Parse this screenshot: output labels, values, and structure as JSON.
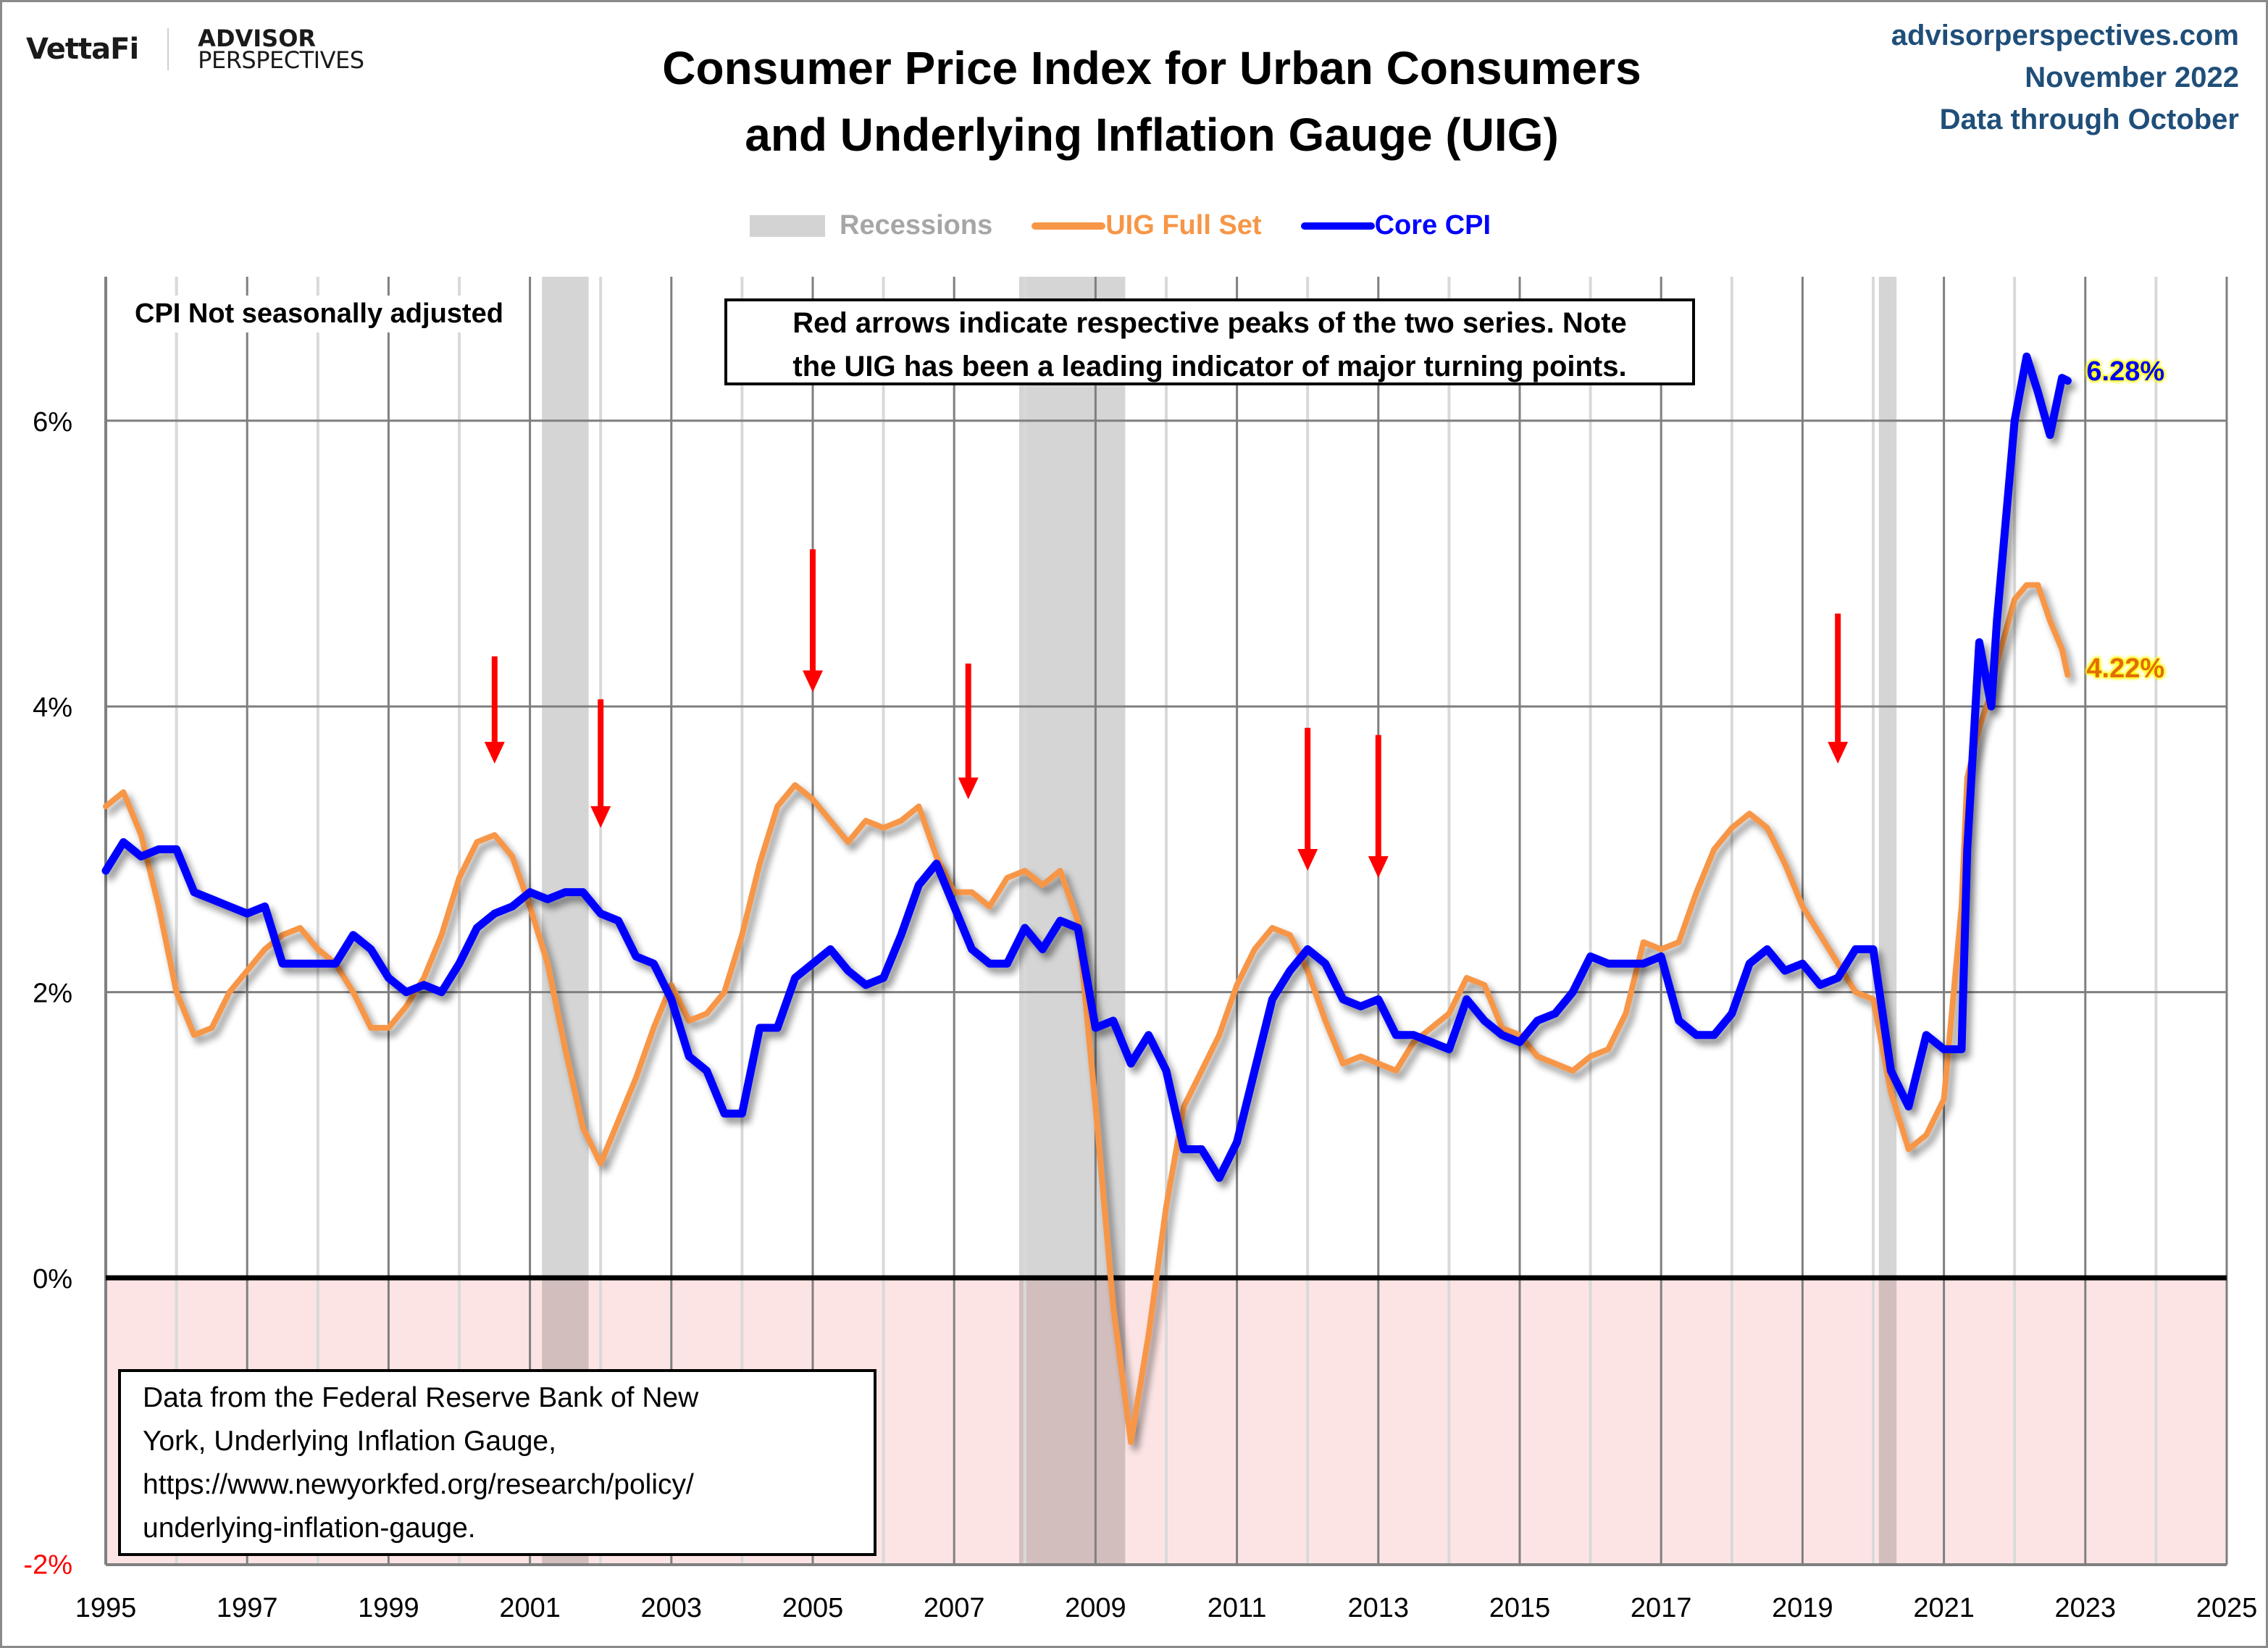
{
  "header": {
    "logo_primary": "VettaFi",
    "logo_secondary_line1": "ADVISOR",
    "logo_secondary_line2": "PERSPECTIVES",
    "title_line1": "Consumer Price Index for Urban Consumers",
    "title_line2": "and Underlying Inflation Gauge (UIG)",
    "site": "advisorperspectives.com",
    "date": "November 2022",
    "data_through": "Data through October"
  },
  "colors": {
    "uig": "#f79646",
    "core": "#0000ff",
    "recession": "#d3d3d3",
    "negative_zone": "#fde4e4",
    "arrow": "#ff0000",
    "meta_text": "#1f4e79",
    "grid_major": "#7f7f7f",
    "grid_minor": "#d9d9d9"
  },
  "notes": {
    "cpi": "CPI Not seasonally adjusted",
    "arrows_line1": "Red arrows indicate respective peaks of the two series. Note",
    "arrows_line2": "the UIG has been a leading indicator of major turning points.",
    "source_line1": "Data from the Federal Reserve Bank of New",
    "source_line2": "York, Underlying Inflation Gauge,",
    "source_line3": "https://www.newyorkfed.org/research/policy/",
    "source_line4": "underlying-inflation-gauge."
  },
  "chart_data": {
    "type": "line",
    "title": "Consumer Price Index for Urban Consumers and Underlying Inflation Gauge (UIG)",
    "xlabel": "",
    "ylabel": "",
    "xlim": [
      1995,
      2025
    ],
    "ylim": [
      -2,
      7
    ],
    "x_ticks": [
      "1995",
      "1997",
      "1999",
      "2001",
      "2003",
      "2005",
      "2007",
      "2009",
      "2011",
      "2013",
      "2015",
      "2017",
      "2019",
      "2021",
      "2023",
      "2025"
    ],
    "x_tick_values": [
      1995,
      1997,
      1999,
      2001,
      2003,
      2005,
      2007,
      2009,
      2011,
      2013,
      2015,
      2017,
      2019,
      2021,
      2023,
      2025
    ],
    "y_ticks": [
      "-2%",
      "0%",
      "2%",
      "4%",
      "6%"
    ],
    "y_tick_values": [
      -2,
      0,
      2,
      4,
      6
    ],
    "legend": {
      "position": "top-center",
      "entries": [
        "Recessions",
        "UIG Full Set",
        "Core CPI"
      ]
    },
    "grid": true,
    "recessions": [
      [
        2001.17,
        2001.83
      ],
      [
        2007.92,
        2009.42
      ],
      [
        2020.08,
        2020.33
      ]
    ],
    "x": [
      1995.0,
      1995.25,
      1995.5,
      1995.75,
      1996.0,
      1996.25,
      1996.5,
      1996.75,
      1997.0,
      1997.25,
      1997.5,
      1997.75,
      1998.0,
      1998.25,
      1998.5,
      1998.75,
      1999.0,
      1999.25,
      1999.5,
      1999.75,
      2000.0,
      2000.25,
      2000.5,
      2000.75,
      2001.0,
      2001.25,
      2001.5,
      2001.75,
      2002.0,
      2002.25,
      2002.5,
      2002.75,
      2003.0,
      2003.25,
      2003.5,
      2003.75,
      2004.0,
      2004.25,
      2004.5,
      2004.75,
      2005.0,
      2005.25,
      2005.5,
      2005.75,
      2006.0,
      2006.25,
      2006.5,
      2006.75,
      2007.0,
      2007.25,
      2007.5,
      2007.75,
      2008.0,
      2008.25,
      2008.5,
      2008.75,
      2009.0,
      2009.25,
      2009.5,
      2009.75,
      2010.0,
      2010.25,
      2010.5,
      2010.75,
      2011.0,
      2011.25,
      2011.5,
      2011.75,
      2012.0,
      2012.25,
      2012.5,
      2012.75,
      2013.0,
      2013.25,
      2013.5,
      2013.75,
      2014.0,
      2014.25,
      2014.5,
      2014.75,
      2015.0,
      2015.25,
      2015.5,
      2015.75,
      2016.0,
      2016.25,
      2016.5,
      2016.75,
      2017.0,
      2017.25,
      2017.5,
      2017.75,
      2018.0,
      2018.25,
      2018.5,
      2018.75,
      2019.0,
      2019.25,
      2019.5,
      2019.75,
      2020.0,
      2020.25,
      2020.5,
      2020.75,
      2021.0,
      2021.25,
      2021.33,
      2021.5,
      2021.67,
      2021.75,
      2022.0,
      2022.17,
      2022.33,
      2022.5,
      2022.67,
      2022.75
    ],
    "series": [
      {
        "name": "UIG Full Set",
        "color": "#f79646",
        "end_label": "4.22%",
        "values": [
          3.3,
          3.4,
          3.1,
          2.6,
          2.0,
          1.7,
          1.75,
          2.0,
          2.15,
          2.3,
          2.4,
          2.45,
          2.3,
          2.2,
          2.0,
          1.75,
          1.75,
          1.9,
          2.1,
          2.4,
          2.8,
          3.05,
          3.1,
          2.95,
          2.6,
          2.2,
          1.6,
          1.05,
          0.8,
          1.1,
          1.4,
          1.75,
          2.05,
          1.8,
          1.85,
          2.0,
          2.4,
          2.9,
          3.3,
          3.45,
          3.35,
          3.2,
          3.05,
          3.2,
          3.15,
          3.2,
          3.3,
          2.95,
          2.7,
          2.7,
          2.6,
          2.8,
          2.85,
          2.75,
          2.85,
          2.5,
          1.2,
          -0.2,
          -1.15,
          -0.4,
          0.5,
          1.2,
          1.45,
          1.7,
          2.05,
          2.3,
          2.45,
          2.4,
          2.15,
          1.8,
          1.5,
          1.55,
          1.5,
          1.45,
          1.65,
          1.75,
          1.85,
          2.1,
          2.05,
          1.75,
          1.7,
          1.55,
          1.5,
          1.45,
          1.55,
          1.6,
          1.85,
          2.35,
          2.3,
          2.35,
          2.7,
          3.0,
          3.15,
          3.25,
          3.15,
          2.9,
          2.6,
          2.4,
          2.2,
          2.0,
          1.95,
          1.3,
          0.9,
          1.0,
          1.25,
          2.6,
          3.5,
          3.85,
          4.1,
          4.3,
          4.75,
          4.85,
          4.85,
          4.6,
          4.4,
          4.22
        ]
      },
      {
        "name": "Core CPI",
        "color": "#0000ff",
        "end_label": "6.28%",
        "values": [
          2.85,
          3.05,
          2.95,
          3.0,
          3.0,
          2.7,
          2.65,
          2.6,
          2.55,
          2.6,
          2.2,
          2.2,
          2.2,
          2.2,
          2.4,
          2.3,
          2.1,
          2.0,
          2.05,
          2.0,
          2.2,
          2.45,
          2.55,
          2.6,
          2.7,
          2.65,
          2.7,
          2.7,
          2.55,
          2.5,
          2.25,
          2.2,
          1.95,
          1.55,
          1.45,
          1.15,
          1.15,
          1.75,
          1.75,
          2.1,
          2.2,
          2.3,
          2.15,
          2.05,
          2.1,
          2.4,
          2.75,
          2.9,
          2.6,
          2.3,
          2.2,
          2.2,
          2.45,
          2.3,
          2.5,
          2.45,
          1.75,
          1.8,
          1.5,
          1.7,
          1.45,
          0.9,
          0.9,
          0.7,
          0.95,
          1.45,
          1.95,
          2.15,
          2.3,
          2.2,
          1.95,
          1.9,
          1.95,
          1.7,
          1.7,
          1.65,
          1.6,
          1.95,
          1.8,
          1.7,
          1.65,
          1.8,
          1.85,
          2.0,
          2.25,
          2.2,
          2.2,
          2.2,
          2.25,
          1.8,
          1.7,
          1.7,
          1.85,
          2.2,
          2.3,
          2.15,
          2.2,
          2.05,
          2.1,
          2.3,
          2.3,
          1.45,
          1.2,
          1.7,
          1.6,
          1.6,
          3.0,
          4.45,
          4.0,
          4.6,
          6.0,
          6.45,
          6.2,
          5.9,
          6.3,
          6.28
        ]
      }
    ],
    "annotations": [
      {
        "type": "arrow",
        "x": 2000.5,
        "from": 4.35,
        "to": 3.6
      },
      {
        "type": "arrow",
        "x": 2002.0,
        "from": 4.05,
        "to": 3.15
      },
      {
        "type": "arrow",
        "x": 2005.0,
        "from": 5.1,
        "to": 4.1
      },
      {
        "type": "arrow",
        "x": 2007.2,
        "from": 4.3,
        "to": 3.35
      },
      {
        "type": "arrow",
        "x": 2012.0,
        "from": 3.85,
        "to": 2.85
      },
      {
        "type": "arrow",
        "x": 2013.0,
        "from": 3.8,
        "to": 2.8
      },
      {
        "type": "arrow",
        "x": 2019.5,
        "from": 4.65,
        "to": 3.6
      }
    ]
  }
}
